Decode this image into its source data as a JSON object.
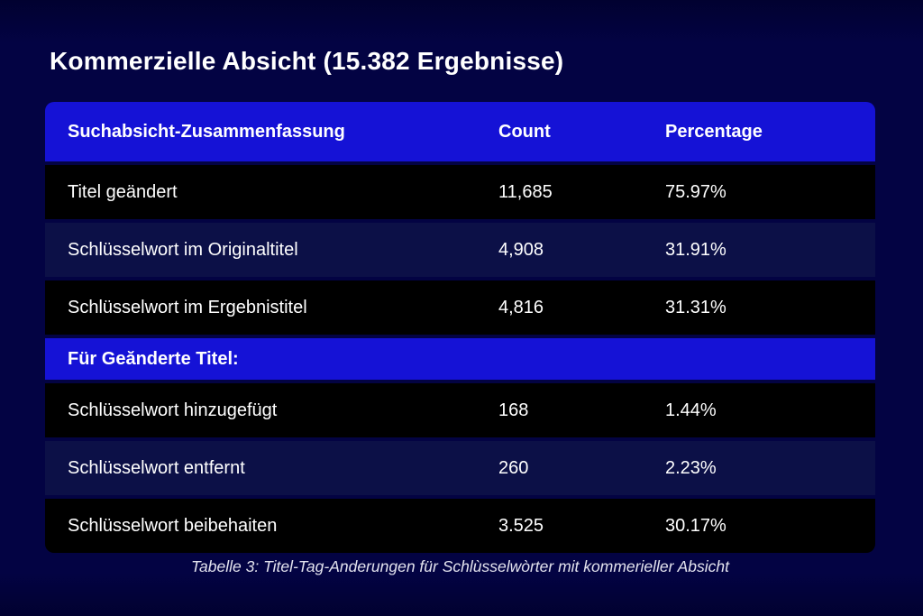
{
  "page": {
    "title": "Kommerzielle Absicht (15.382 Ergebnisse)",
    "caption": "Tabelle 3: Titel-Tag-Anderungen für Schlùsselwòrter mit kommerieller Absicht"
  },
  "table": {
    "columns": [
      "Suchabsicht-Zusammenfassung",
      "Count",
      "Percentage"
    ],
    "rows": [
      {
        "type": "data",
        "label": "Titel geändert",
        "count": "11,685",
        "percentage": "75.97%"
      },
      {
        "type": "data",
        "label": "Schlüsselwort im Originaltitel",
        "count": "4,908",
        "percentage": "31.91%"
      },
      {
        "type": "data",
        "label": "Schlüsselwort im Ergebnistitel",
        "count": "4,816",
        "percentage": "31.31%"
      },
      {
        "type": "section",
        "label": "Für Geănderte Titel:"
      },
      {
        "type": "data",
        "label": "Schlüsselwort hinzugefügt",
        "count": "168",
        "percentage": "1.44%"
      },
      {
        "type": "data",
        "label": "Schlüsselwort entfernt",
        "count": "260",
        "percentage": "2.23%"
      },
      {
        "type": "data",
        "label": "Schlüsselwort beibehaiten",
        "count": "3.525",
        "percentage": "30.17%"
      }
    ]
  },
  "colors": {
    "background": "#030343",
    "header_blue": "#1512d6",
    "row_black": "#000000",
    "row_navy": "#0c1047",
    "text": "#ffffff"
  },
  "chart_data": {
    "type": "table",
    "title": "Kommerzielle Absicht (15.382 Ergebnisse)",
    "columns": [
      "Suchabsicht-Zusammenfassung",
      "Count",
      "Percentage"
    ],
    "rows": [
      [
        "Titel geändert",
        "11,685",
        "75.97%"
      ],
      [
        "Schlüsselwort im Originaltitel",
        "4,908",
        "31.91%"
      ],
      [
        "Schlüsselwort im Ergebnistitel",
        "4,816",
        "31.31%"
      ],
      [
        "Für Geănderte Titel:",
        "",
        ""
      ],
      [
        "Schlüsselwort hinzugefügt",
        "168",
        "1.44%"
      ],
      [
        "Schlüsselwort entfernt",
        "260",
        "2.23%"
      ],
      [
        "Schlüsselwort beibehaiten",
        "3.525",
        "30.17%"
      ]
    ],
    "caption": "Tabelle 3: Titel-Tag-Anderungen für Schlùsselwòrter mit kommerieller Absicht",
    "total_results": 15382
  }
}
